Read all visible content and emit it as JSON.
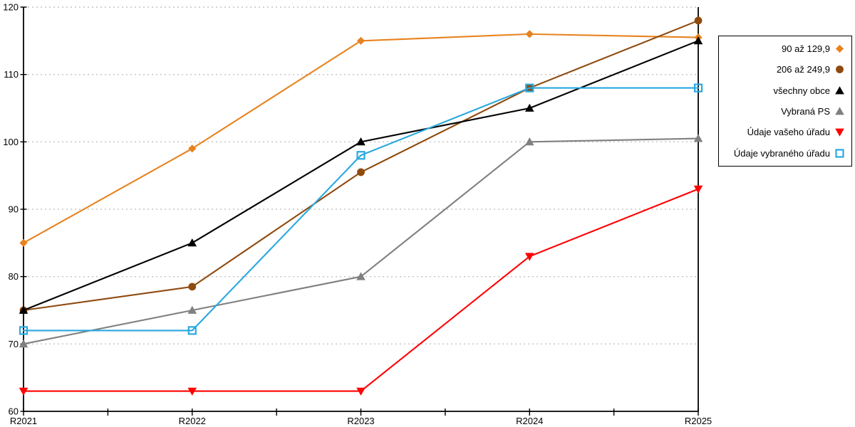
{
  "chart_data": {
    "type": "line",
    "categories": [
      "R2021",
      "R2022",
      "R2023",
      "R2024",
      "R2025"
    ],
    "yticks": [
      60,
      70,
      80,
      90,
      100,
      110,
      120
    ],
    "ylim": [
      60,
      120
    ],
    "grid": "horizontal-dotted",
    "legend_position": "right",
    "axis_color": "#000000",
    "grid_color": "#c3c3c3",
    "series": [
      {
        "name": "90 až 129,9",
        "marker": "diamond",
        "color": "#e8821e",
        "values": [
          85,
          99,
          115,
          116,
          115.5
        ]
      },
      {
        "name": "206 až 249,9",
        "marker": "circle",
        "color": "#8f4a0e",
        "values": [
          75,
          78.5,
          95.5,
          108,
          118
        ]
      },
      {
        "name": "všechny obce",
        "marker": "triangle-up",
        "color": "#000000",
        "values": [
          75,
          85,
          100,
          105,
          115
        ]
      },
      {
        "name": "Vybraná PS",
        "marker": "triangle-up",
        "color": "#808080",
        "values": [
          70,
          75,
          80,
          100,
          100.5
        ]
      },
      {
        "name": "Údaje vašeho úřadu",
        "marker": "triangle-down",
        "color": "#fe0000",
        "values": [
          63,
          63,
          63,
          83,
          93
        ]
      },
      {
        "name": "Údaje vybraného úřadu",
        "marker": "square-open",
        "color": "#29a8df",
        "values": [
          72,
          72,
          98,
          108,
          108
        ]
      }
    ]
  }
}
